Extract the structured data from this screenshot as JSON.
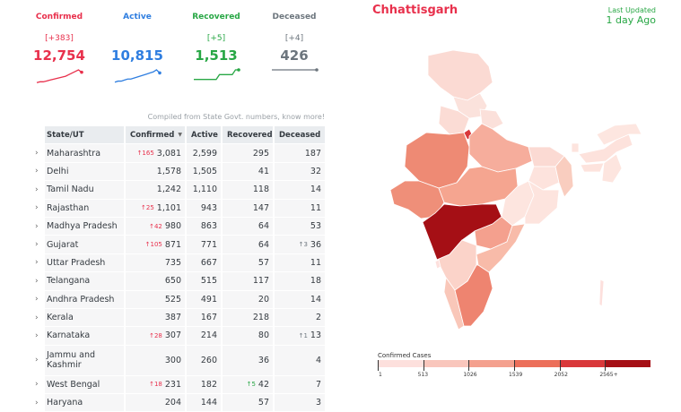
{
  "stats": [
    {
      "label": "Confirmed",
      "delta": "[+383]",
      "value": "12,754",
      "color": "#e8304c",
      "spark": [
        2,
        3,
        3,
        4,
        5,
        6,
        7,
        8,
        9,
        10,
        12,
        14,
        16,
        18,
        15
      ]
    },
    {
      "label": "Active",
      "delta": "",
      "value": "10,815",
      "color": "#2f7ee0",
      "spark": [
        2,
        3,
        3,
        4,
        5,
        5,
        6,
        7,
        8,
        9,
        10,
        11,
        12,
        14,
        11
      ]
    },
    {
      "label": "Recovered",
      "delta": "[+5]",
      "value": "1,513",
      "color": "#28a745",
      "spark": [
        1,
        1,
        1,
        1,
        1,
        1,
        1,
        1,
        2,
        2,
        2,
        2,
        2,
        3,
        3
      ]
    },
    {
      "label": "Deceased",
      "delta": "[+4]",
      "value": "426",
      "color": "#6c757d",
      "spark": [
        1,
        1,
        1,
        1,
        1,
        1,
        1,
        1,
        1,
        1,
        1,
        1,
        1,
        1,
        1
      ]
    }
  ],
  "compiled_note": "Compiled from State Govt. numbers, know more!",
  "table": {
    "headers": [
      "State/UT",
      "Confirmed",
      "Active",
      "Recovered",
      "Deceased"
    ],
    "rows": [
      {
        "state": "Maharashtra",
        "confirmed": "3,081",
        "conf_delta": "↑165",
        "active": "2,599",
        "recovered": "295",
        "deceased": "187"
      },
      {
        "state": "Delhi",
        "confirmed": "1,578",
        "active": "1,505",
        "recovered": "41",
        "deceased": "32"
      },
      {
        "state": "Tamil Nadu",
        "confirmed": "1,242",
        "active": "1,110",
        "recovered": "118",
        "deceased": "14"
      },
      {
        "state": "Rajasthan",
        "confirmed": "1,101",
        "conf_delta": "↑25",
        "active": "943",
        "recovered": "147",
        "deceased": "11"
      },
      {
        "state": "Madhya Pradesh",
        "confirmed": "980",
        "conf_delta": "↑42",
        "active": "863",
        "recovered": "64",
        "deceased": "53"
      },
      {
        "state": "Gujarat",
        "confirmed": "871",
        "conf_delta": "↑105",
        "active": "771",
        "recovered": "64",
        "deceased": "36",
        "dec_delta": "↑3"
      },
      {
        "state": "Uttar Pradesh",
        "confirmed": "735",
        "active": "667",
        "recovered": "57",
        "deceased": "11"
      },
      {
        "state": "Telangana",
        "confirmed": "650",
        "active": "515",
        "recovered": "117",
        "deceased": "18"
      },
      {
        "state": "Andhra Pradesh",
        "confirmed": "525",
        "active": "491",
        "recovered": "20",
        "deceased": "14"
      },
      {
        "state": "Kerala",
        "confirmed": "387",
        "active": "167",
        "recovered": "218",
        "deceased": "2"
      },
      {
        "state": "Karnataka",
        "confirmed": "307",
        "conf_delta": "↑28",
        "active": "214",
        "recovered": "80",
        "deceased": "13",
        "dec_delta": "↑1"
      },
      {
        "state": "Jammu and Kashmir",
        "confirmed": "300",
        "active": "260",
        "recovered": "36",
        "deceased": "4",
        "tall": true
      },
      {
        "state": "West Bengal",
        "confirmed": "231",
        "conf_delta": "↑18",
        "active": "182",
        "recovered": "42",
        "rec_delta": "↑5",
        "deceased": "7"
      },
      {
        "state": "Haryana",
        "confirmed": "204",
        "active": "144",
        "recovered": "57",
        "deceased": "3"
      }
    ]
  },
  "map": {
    "state_title": "Chhattisgarh",
    "updated_label": "Last Updated",
    "updated_value": "1 day Ago"
  },
  "legend": {
    "title": "Confirmed Cases",
    "labels": [
      "1",
      "513",
      "1026",
      "1539",
      "2052",
      "2565+"
    ],
    "colors": [
      "#fde0dd",
      "#f9c6bc",
      "#f4a08e",
      "#ec6f5a",
      "#d9383a",
      "#a50f15"
    ]
  }
}
